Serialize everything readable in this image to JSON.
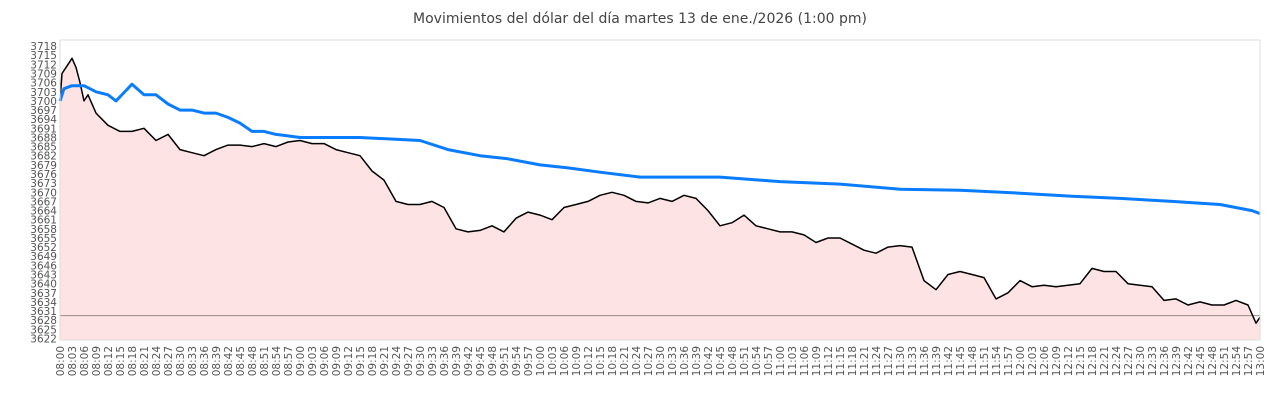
{
  "chart_data": {
    "type": "line",
    "title": "Movimientos del dólar del día martes 13 de ene./2026 (1:00 pm)",
    "xlabel": "",
    "ylabel": "",
    "ylim": [
      3621.5,
      3720
    ],
    "xlim_minutes": [
      0,
      300
    ],
    "grid": false,
    "legend": "none",
    "colors": {
      "price": "#000000",
      "price_fill": "#fde3e3",
      "average": "#0a7cff",
      "reference": "#998888",
      "frame": "#dddddd"
    },
    "reference_value": 3629.5,
    "y_ticks": [
      "3718",
      "3715",
      "3712",
      "3709",
      "3706",
      "3703",
      "3700",
      "3697",
      "3694",
      "3691",
      "3688",
      "3685",
      "3682",
      "3679",
      "3676",
      "3673",
      "3670",
      "3667",
      "3664",
      "3661",
      "3658",
      "3655",
      "3652",
      "3649",
      "3646",
      "3643",
      "3640",
      "3637",
      "3634",
      "3631",
      "3628",
      "3625",
      "3622"
    ],
    "x_ticks": [
      "08:00",
      "08:03",
      "08:06",
      "08:09",
      "08:12",
      "08:15",
      "08:18",
      "08:21",
      "08:24",
      "08:27",
      "08:30",
      "08:33",
      "08:36",
      "08:39",
      "08:42",
      "08:45",
      "08:48",
      "08:51",
      "08:54",
      "08:57",
      "09:00",
      "09:03",
      "09:06",
      "09:09",
      "09:12",
      "09:15",
      "09:18",
      "09:21",
      "09:24",
      "09:27",
      "09:30",
      "09:33",
      "09:36",
      "09:39",
      "09:42",
      "09:45",
      "09:48",
      "09:51",
      "09:54",
      "09:57",
      "10:00",
      "10:03",
      "10:06",
      "10:09",
      "10:12",
      "10:15",
      "10:18",
      "10:21",
      "10:24",
      "10:27",
      "10:30",
      "10:33",
      "10:36",
      "10:39",
      "10:42",
      "10:45",
      "10:48",
      "10:51",
      "10:54",
      "10:57",
      "11:00",
      "11:03",
      "11:06",
      "11:09",
      "11:12",
      "11:15",
      "11:18",
      "11:21",
      "11:24",
      "11:27",
      "11:30",
      "11:33",
      "11:36",
      "11:39",
      "11:42",
      "11:45",
      "11:48",
      "11:51",
      "11:54",
      "11:57",
      "12:00",
      "12:03",
      "12:06",
      "12:09",
      "12:12",
      "12:15",
      "12:18",
      "12:21",
      "12:24",
      "12:27",
      "12:30",
      "12:33",
      "12:36",
      "12:39",
      "12:42",
      "12:45",
      "12:48",
      "12:51",
      "12:54",
      "12:57",
      "13:00"
    ],
    "series": [
      {
        "name": "price",
        "x_minutes": [
          0,
          0.5,
          2,
          3,
          4,
          5,
          6,
          7,
          9,
          12,
          15,
          18,
          21,
          24,
          27,
          30,
          33,
          36,
          39,
          42,
          45,
          48,
          51,
          54,
          57,
          60,
          63,
          66,
          69,
          72,
          75,
          78,
          81,
          84,
          87,
          90,
          93,
          96,
          99,
          102,
          105,
          108,
          111,
          114,
          117,
          120,
          123,
          126,
          129,
          132,
          135,
          138,
          141,
          144,
          147,
          150,
          153,
          156,
          159,
          162,
          165,
          168,
          171,
          174,
          177,
          180,
          183,
          186,
          189,
          192,
          195,
          198,
          201,
          204,
          207,
          210,
          213,
          216,
          219,
          222,
          225,
          228,
          231,
          234,
          237,
          240,
          243,
          246,
          249,
          252,
          255,
          258,
          261,
          264,
          267,
          270,
          273,
          276,
          279,
          282,
          285,
          288,
          291,
          294,
          297,
          299,
          300
        ],
        "values": [
          3700,
          3709,
          3712,
          3714,
          3711,
          3706,
          3700,
          3702,
          3696,
          3692,
          3690,
          3690,
          3691,
          3687,
          3689,
          3684,
          3683,
          3682,
          3684,
          3685.5,
          3685.5,
          3685,
          3686,
          3685,
          3686.5,
          3687,
          3686,
          3686,
          3684,
          3683,
          3682,
          3677,
          3674,
          3667,
          3666,
          3666,
          3667,
          3665,
          3658,
          3657,
          3657.5,
          3659,
          3657,
          3661.5,
          3663.5,
          3662.5,
          3661,
          3665,
          3666,
          3667,
          3669,
          3670,
          3669,
          3667,
          3666.5,
          3668,
          3667,
          3669,
          3668,
          3664,
          3659,
          3660,
          3662.5,
          3659,
          3658,
          3657,
          3657,
          3656,
          3653.5,
          3655,
          3655,
          3653,
          3651,
          3650,
          3652,
          3652.5,
          3652,
          3641,
          3638,
          3643,
          3644,
          3643,
          3642,
          3635,
          3637,
          3641,
          3639,
          3639.5,
          3639,
          3639.5,
          3640,
          3645,
          3644,
          3644,
          3640,
          3639.5,
          3639,
          3634.5,
          3635,
          3633,
          3634,
          3633,
          3633,
          3634.5,
          3633,
          3627,
          3629
        ]
      },
      {
        "name": "average",
        "x_minutes": [
          0,
          1,
          3,
          6,
          9,
          12,
          14,
          18,
          21,
          24,
          27,
          30,
          33,
          36,
          39,
          42,
          45,
          48,
          51,
          54,
          57,
          60,
          75,
          90,
          97,
          105,
          112,
          120,
          127,
          135,
          145,
          165,
          180,
          195,
          210,
          225,
          240,
          253,
          265,
          278,
          290,
          298,
          300
        ],
        "values": [
          3700,
          3704,
          3705,
          3705,
          3703,
          3702,
          3700,
          3705.5,
          3702,
          3702,
          3699,
          3697,
          3697,
          3696,
          3696,
          3694.6,
          3692.7,
          3690,
          3690,
          3689,
          3688.5,
          3688,
          3688,
          3687,
          3684,
          3682,
          3681,
          3679,
          3678,
          3676.6,
          3675,
          3675,
          3673.5,
          3672.7,
          3671,
          3670.7,
          3669.7,
          3668.7,
          3668,
          3667,
          3666,
          3664,
          3663
        ]
      }
    ]
  }
}
